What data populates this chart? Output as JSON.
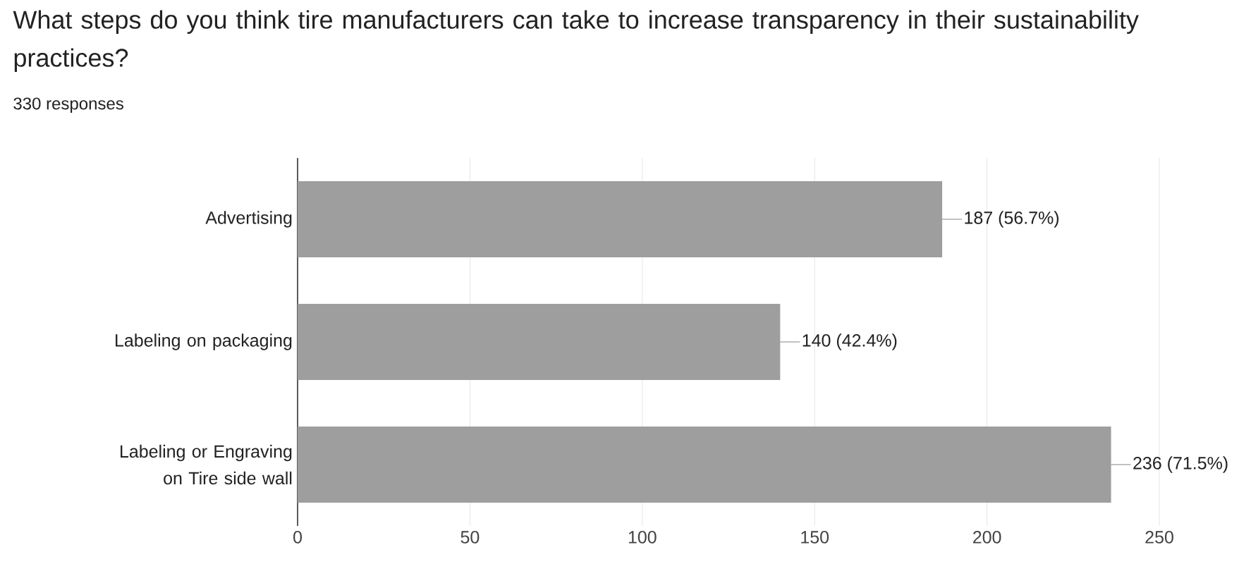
{
  "chart_data": {
    "type": "bar",
    "orientation": "horizontal",
    "title": "What steps do you think tire manufacturers can take to increase transparency in their sustainability practices?",
    "subtitle": "330 responses",
    "categories": [
      "Advertising",
      "Labeling on packaging",
      "Labeling or Engraving on Tire side wall"
    ],
    "values": [
      187,
      140,
      236
    ],
    "value_labels": [
      "187 (56.7%)",
      "140 (42.4%)",
      "236 (71.5%)"
    ],
    "color": "#9e9e9e",
    "xlim": [
      0,
      250
    ],
    "xticks": [
      0,
      50,
      100,
      150,
      200,
      250
    ],
    "grid": "x"
  }
}
